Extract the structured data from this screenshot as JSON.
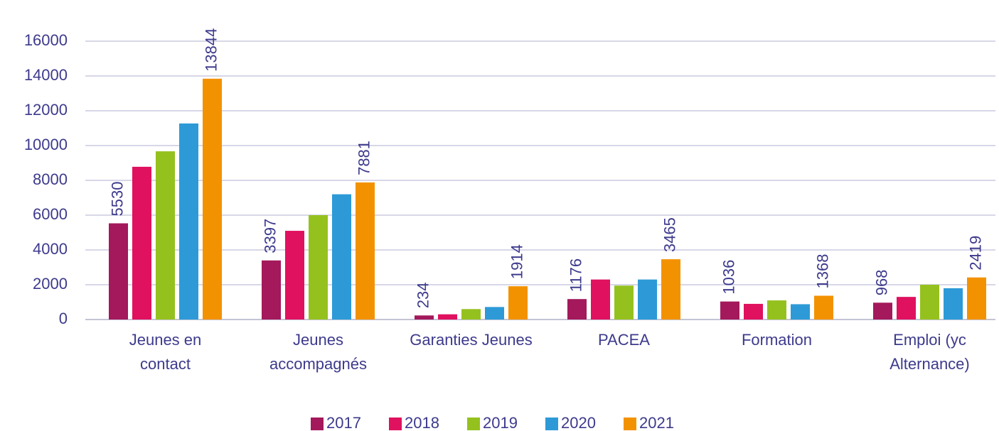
{
  "chart_data": {
    "type": "bar",
    "categories": [
      "Jeunes en\ncontact",
      "Jeunes\naccompagnés",
      "Garanties Jeunes",
      "PACEA",
      "Formation",
      "Emploi (yc\nAlternance)"
    ],
    "series": [
      {
        "name": "2017",
        "color": "#a3195b",
        "values": [
          5530,
          3397,
          234,
          1176,
          1036,
          968
        ],
        "data_labels": true
      },
      {
        "name": "2018",
        "color": "#e0115f",
        "values": [
          8780,
          5100,
          300,
          2300,
          900,
          1300
        ]
      },
      {
        "name": "2019",
        "color": "#95c11f",
        "values": [
          9670,
          6000,
          600,
          1950,
          1100,
          2000
        ]
      },
      {
        "name": "2020",
        "color": "#2d9ad7",
        "values": [
          11270,
          7200,
          720,
          2300,
          880,
          1800
        ]
      },
      {
        "name": "2021",
        "color": "#f39200",
        "values": [
          13844,
          7881,
          1914,
          3465,
          1368,
          2419
        ],
        "data_labels": true
      }
    ],
    "ylim": [
      0,
      16000
    ],
    "yticks": [
      0,
      2000,
      4000,
      6000,
      8000,
      10000,
      12000,
      14000,
      16000
    ],
    "grid": true,
    "legend": "bottom"
  }
}
